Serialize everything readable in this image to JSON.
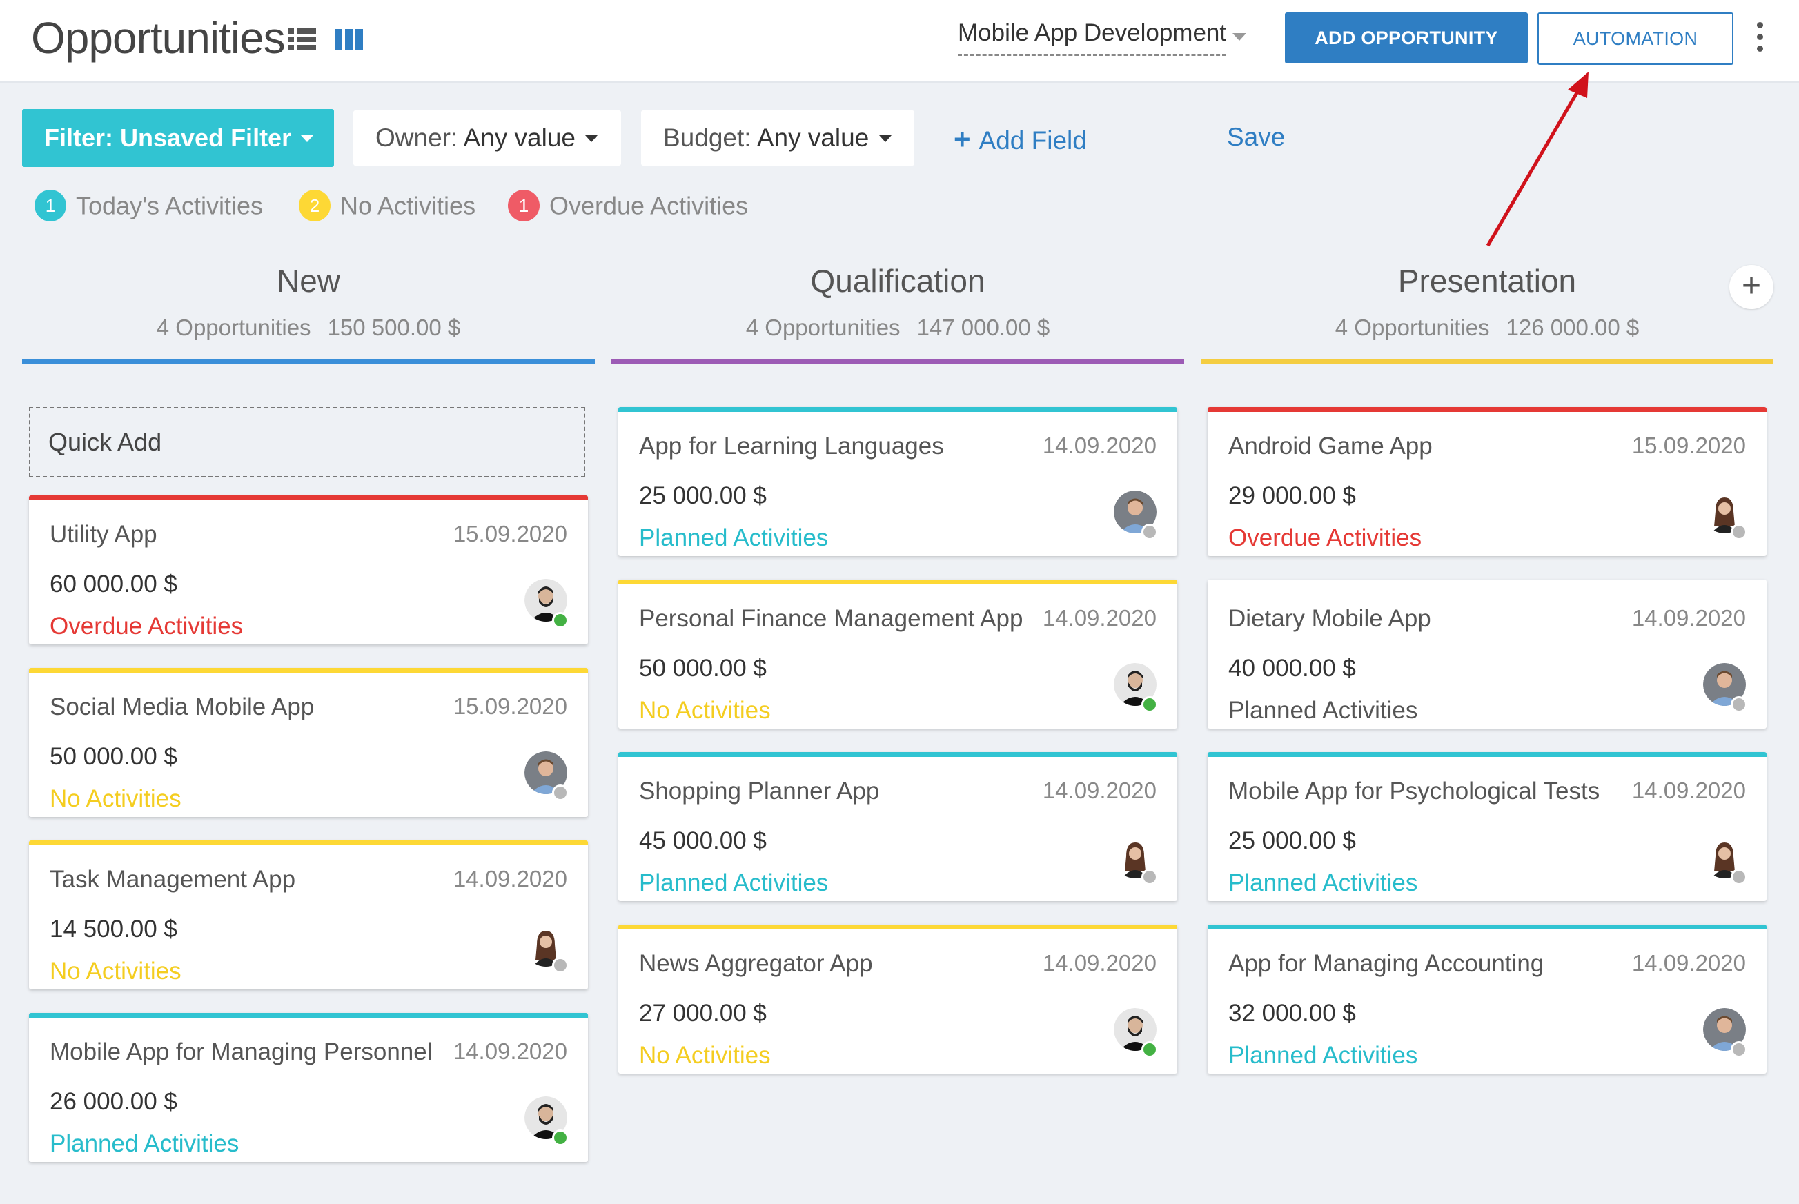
{
  "header": {
    "title": "Opportunities",
    "pipeline": "Mobile App Development",
    "add_button": "ADD OPPORTUNITY",
    "automation_button": "AUTOMATION"
  },
  "filters": {
    "filter_button": "Filter: Unsaved Filter",
    "owner_label": "Owner:",
    "owner_value": "Any value",
    "budget_label": "Budget:",
    "budget_value": "Any value",
    "add_field": "Add Field",
    "save": "Save"
  },
  "legend": [
    {
      "count": "1",
      "label": "Today's Activities",
      "color": "#31c4d2"
    },
    {
      "count": "2",
      "label": "No Activities",
      "color": "#fdd835"
    },
    {
      "count": "1",
      "label": "Overdue Activities",
      "color": "#ef5b66"
    }
  ],
  "columns": [
    {
      "title": "New",
      "count": "4 Opportunities",
      "total": "150 500.00 $",
      "color": "#3a8fd9"
    },
    {
      "title": "Qualification",
      "count": "4 Opportunities",
      "total": "147 000.00 $",
      "color": "#9c5bb5"
    },
    {
      "title": "Presentation",
      "count": "4 Opportunities",
      "total": "126 000.00 $",
      "color": "#f4cd41"
    }
  ],
  "quick_add": "Quick Add",
  "cards": {
    "new": [
      {
        "name": "Utility App",
        "date": "15.09.2020",
        "amount": "60 000.00 $",
        "activity": "Overdue Activities",
        "avatar": "bearded-man-avatar"
      },
      {
        "name": "Social Media Mobile App",
        "date": "15.09.2020",
        "amount": "50 000.00 $",
        "activity": "No Activities",
        "avatar": "man-shirt-avatar"
      },
      {
        "name": "Task Management App",
        "date": "14.09.2020",
        "amount": "14 500.00 $",
        "activity": "No Activities",
        "avatar": "woman-avatar"
      },
      {
        "name": "Mobile App for Managing Personnel",
        "date": "14.09.2020",
        "amount": "26 000.00 $",
        "activity": "Planned Activities",
        "avatar": "bearded-man-avatar"
      }
    ],
    "qualification": [
      {
        "name": "App for Learning Languages",
        "date": "14.09.2020",
        "amount": "25 000.00 $",
        "activity": "Planned Activities",
        "avatar": "man-shirt-avatar"
      },
      {
        "name": "Personal Finance Management App",
        "date": "14.09.2020",
        "amount": "50 000.00 $",
        "activity": "No Activities",
        "avatar": "bearded-man-avatar"
      },
      {
        "name": "Shopping Planner App",
        "date": "14.09.2020",
        "amount": "45 000.00 $",
        "activity": "Planned Activities",
        "avatar": "woman-avatar"
      },
      {
        "name": "News Aggregator App",
        "date": "14.09.2020",
        "amount": "27 000.00 $",
        "activity": "No Activities",
        "avatar": "bearded-man-avatar"
      }
    ],
    "presentation": [
      {
        "name": "Android Game App",
        "date": "15.09.2020",
        "amount": "29 000.00 $",
        "activity": "Overdue Activities",
        "avatar": "woman-avatar"
      },
      {
        "name": "Dietary Mobile App",
        "date": "14.09.2020",
        "amount": "40 000.00 $",
        "activity": "Planned Activities",
        "avatar": "man-shirt-avatar"
      },
      {
        "name": "Mobile App for Psychological Tests",
        "date": "14.09.2020",
        "amount": "25 000.00 $",
        "activity": "Planned Activities",
        "avatar": "woman-avatar"
      },
      {
        "name": "App for Managing Accounting",
        "date": "14.09.2020",
        "amount": "32 000.00 $",
        "activity": "Planned Activities",
        "avatar": "man-shirt-avatar"
      }
    ]
  }
}
